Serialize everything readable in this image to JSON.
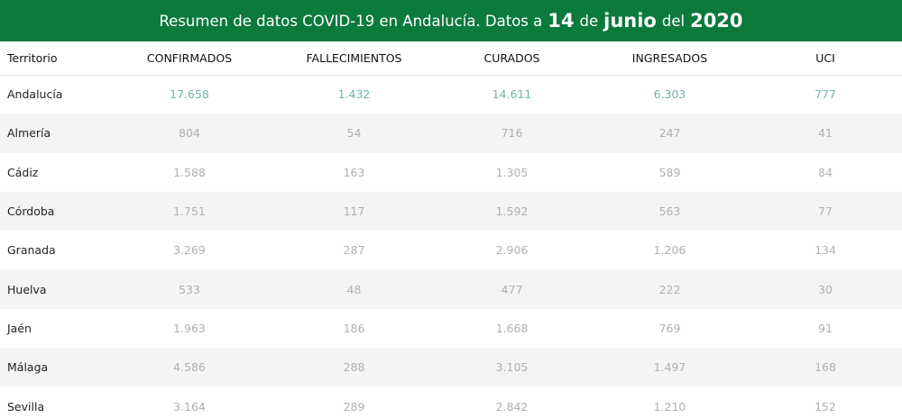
{
  "header": {
    "prefix": "Resumen de datos COVID-19 en Andalucía. Datos a",
    "day": "14",
    "de": "de",
    "month": "junio",
    "del": "del",
    "year": "2020"
  },
  "table": {
    "columns": [
      "Territorio",
      "CONFIRMADOS",
      "FALLECIMIENTOS",
      "CURADOS",
      "INGRESADOS",
      "UCI"
    ],
    "rows": [
      [
        "Andalucía",
        "17.658",
        "1.432",
        "14.611",
        "6.303",
        "777"
      ],
      [
        "Almería",
        "804",
        "54",
        "716",
        "247",
        "41"
      ],
      [
        "Cádiz",
        "1.588",
        "163",
        "1.305",
        "589",
        "84"
      ],
      [
        "Córdoba",
        "1.751",
        "117",
        "1.592",
        "563",
        "77"
      ],
      [
        "Granada",
        "3.269",
        "287",
        "2.906",
        "1.206",
        "134"
      ],
      [
        "Huelva",
        "533",
        "48",
        "477",
        "222",
        "30"
      ],
      [
        "Jaén",
        "1.963",
        "186",
        "1.668",
        "769",
        "91"
      ],
      [
        "Málaga",
        "4.586",
        "288",
        "3.105",
        "1.497",
        "168"
      ],
      [
        "Sevilla",
        "3.164",
        "289",
        "2.842",
        "1.210",
        "152"
      ]
    ]
  },
  "colors": {
    "header_bg": "#0b7a3b",
    "total_row_value": "#6eb5a9",
    "province_value": "#b0b0b0",
    "stripe": "#f4f4f4"
  }
}
